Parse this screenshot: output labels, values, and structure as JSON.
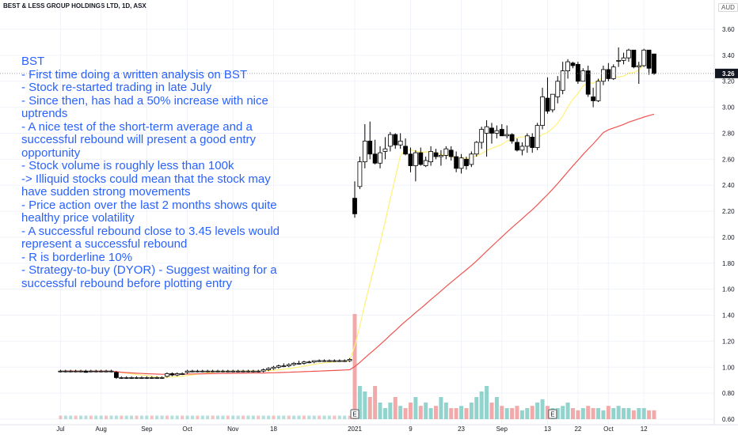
{
  "header": {
    "title": "BEST & LESS GROUP HOLDINGS LTD, 1D, ASX",
    "currency": "AUD"
  },
  "last_price": "3.26",
  "annotation": {
    "lines": [
      "BST",
      "- First time doing a written analysis on BST",
      "- Stock re-started trading in late July",
      "- Since then, has had a 50% increase with nice",
      "uptrends",
      "- A nice test of the short-term average and a",
      "successful rebound will present a good entry",
      "opportunity",
      "- Stock volume is roughly less than 100k",
      "-> Illiquid stocks could mean that the stock may",
      "have sudden strong movements",
      "- Price action over the last 2 months shows quite",
      "healthy price volatility",
      "- A successful rebound close to 3.45 levels would",
      "represent a successful rebound",
      "- R is borderline 10%",
      "- Strategy-to-buy (DYOR) - Suggest waiting for a",
      "successful rebound before plotting entry"
    ]
  },
  "events": [
    {
      "label": "E",
      "x": 0.0
    },
    {
      "label": "E",
      "x": 39.0
    }
  ],
  "colors": {
    "up_candle": "#ffffff",
    "down_candle": "#000000",
    "candle_border": "#000000",
    "short_ma": "#fff176",
    "long_ma": "#ef5350",
    "volume_up": "#80cbc4",
    "volume_down": "#ef9a9a",
    "grid": "#f0f3fa",
    "axis_text": "#131722",
    "price_line": "#888888"
  },
  "chart_data": {
    "type": "candlestick",
    "title": "BEST & LESS GROUP HOLDINGS LTD, 1D, ASX",
    "y_axis": {
      "ticks": [
        "3.60",
        "3.40",
        "3.20",
        "3.00",
        "2.80",
        "2.60",
        "2.40",
        "2.20",
        "2.00",
        "1.80",
        "1.60",
        "1.40",
        "1.20",
        "1.00",
        "0.80",
        "0.60"
      ],
      "range": [
        0.58,
        3.7
      ]
    },
    "x_axis": {
      "range": [
        -58,
        61
      ],
      "ticks": [
        {
          "label": "Jul",
          "x": -58
        },
        {
          "label": "Aug",
          "x": -50
        },
        {
          "label": "Sep",
          "x": -41
        },
        {
          "label": "Oct",
          "x": -33
        },
        {
          "label": "Nov",
          "x": -24
        },
        {
          "label": "18",
          "x": -16
        },
        {
          "label": "2021",
          "x": 0
        },
        {
          "label": "9",
          "x": 11
        },
        {
          "label": "23",
          "x": 21
        },
        {
          "label": "Sep",
          "x": 29
        },
        {
          "label": "13",
          "x": 38
        },
        {
          "label": "22",
          "x": 44
        },
        {
          "label": "Oct",
          "x": 50
        },
        {
          "label": "12",
          "x": 57
        }
      ]
    },
    "pre_bars": [
      {
        "o": 0.97,
        "h": 0.98,
        "l": 0.96,
        "c": 0.97
      },
      {
        "o": 0.97,
        "h": 0.98,
        "l": 0.96,
        "c": 0.97
      },
      {
        "o": 0.97,
        "h": 0.98,
        "l": 0.96,
        "c": 0.97
      },
      {
        "o": 0.97,
        "h": 0.98,
        "l": 0.96,
        "c": 0.97
      },
      {
        "o": 0.97,
        "h": 0.98,
        "l": 0.96,
        "c": 0.97
      },
      {
        "o": 0.97,
        "h": 0.98,
        "l": 0.96,
        "c": 0.96
      },
      {
        "o": 0.97,
        "h": 0.98,
        "l": 0.96,
        "c": 0.97
      },
      {
        "o": 0.97,
        "h": 0.98,
        "l": 0.96,
        "c": 0.97
      },
      {
        "o": 0.97,
        "h": 0.98,
        "l": 0.96,
        "c": 0.97
      },
      {
        "o": 0.97,
        "h": 0.98,
        "l": 0.96,
        "c": 0.97
      },
      {
        "o": 0.97,
        "h": 0.98,
        "l": 0.96,
        "c": 0.97
      },
      {
        "o": 0.96,
        "h": 0.97,
        "l": 0.91,
        "c": 0.92
      },
      {
        "o": 0.92,
        "h": 0.93,
        "l": 0.91,
        "c": 0.92
      },
      {
        "o": 0.92,
        "h": 0.93,
        "l": 0.91,
        "c": 0.92
      },
      {
        "o": 0.92,
        "h": 0.93,
        "l": 0.91,
        "c": 0.92
      },
      {
        "o": 0.92,
        "h": 0.93,
        "l": 0.91,
        "c": 0.92
      },
      {
        "o": 0.92,
        "h": 0.93,
        "l": 0.91,
        "c": 0.92
      },
      {
        "o": 0.92,
        "h": 0.93,
        "l": 0.91,
        "c": 0.92
      },
      {
        "o": 0.92,
        "h": 0.93,
        "l": 0.91,
        "c": 0.92
      },
      {
        "o": 0.92,
        "h": 0.93,
        "l": 0.91,
        "c": 0.92
      },
      {
        "o": 0.92,
        "h": 0.93,
        "l": 0.91,
        "c": 0.92
      },
      {
        "o": 0.93,
        "h": 0.96,
        "l": 0.92,
        "c": 0.95
      },
      {
        "o": 0.95,
        "h": 0.96,
        "l": 0.93,
        "c": 0.94
      },
      {
        "o": 0.94,
        "h": 0.96,
        "l": 0.93,
        "c": 0.95
      },
      {
        "o": 0.95,
        "h": 0.96,
        "l": 0.94,
        "c": 0.95
      },
      {
        "o": 0.96,
        "h": 0.98,
        "l": 0.95,
        "c": 0.97
      },
      {
        "o": 0.97,
        "h": 0.98,
        "l": 0.96,
        "c": 0.97
      },
      {
        "o": 0.97,
        "h": 0.98,
        "l": 0.96,
        "c": 0.97
      },
      {
        "o": 0.97,
        "h": 0.98,
        "l": 0.96,
        "c": 0.97
      },
      {
        "o": 0.97,
        "h": 0.98,
        "l": 0.96,
        "c": 0.97
      },
      {
        "o": 0.97,
        "h": 0.98,
        "l": 0.96,
        "c": 0.97
      },
      {
        "o": 0.97,
        "h": 0.98,
        "l": 0.96,
        "c": 0.97
      },
      {
        "o": 0.97,
        "h": 0.98,
        "l": 0.96,
        "c": 0.97
      },
      {
        "o": 0.97,
        "h": 0.98,
        "l": 0.96,
        "c": 0.97
      },
      {
        "o": 0.97,
        "h": 0.98,
        "l": 0.96,
        "c": 0.97
      },
      {
        "o": 0.97,
        "h": 0.98,
        "l": 0.96,
        "c": 0.97
      },
      {
        "o": 0.97,
        "h": 0.98,
        "l": 0.96,
        "c": 0.97
      },
      {
        "o": 0.97,
        "h": 0.98,
        "l": 0.96,
        "c": 0.97
      },
      {
        "o": 0.97,
        "h": 0.98,
        "l": 0.96,
        "c": 0.97
      },
      {
        "o": 0.97,
        "h": 0.98,
        "l": 0.96,
        "c": 0.97
      },
      {
        "o": 0.97,
        "h": 0.99,
        "l": 0.96,
        "c": 0.98
      },
      {
        "o": 0.98,
        "h": 1.0,
        "l": 0.97,
        "c": 0.99
      },
      {
        "o": 0.99,
        "h": 1.01,
        "l": 0.98,
        "c": 1.0
      },
      {
        "o": 1.0,
        "h": 1.02,
        "l": 0.99,
        "c": 1.01
      },
      {
        "o": 1.01,
        "h": 1.03,
        "l": 1.0,
        "c": 1.01
      },
      {
        "o": 1.01,
        "h": 1.03,
        "l": 1.0,
        "c": 1.02
      },
      {
        "o": 1.02,
        "h": 1.04,
        "l": 1.01,
        "c": 1.03
      },
      {
        "o": 1.03,
        "h": 1.05,
        "l": 1.02,
        "c": 1.03
      },
      {
        "o": 1.03,
        "h": 1.05,
        "l": 1.02,
        "c": 1.04
      },
      {
        "o": 1.04,
        "h": 1.05,
        "l": 1.03,
        "c": 1.04
      },
      {
        "o": 1.04,
        "h": 1.05,
        "l": 1.03,
        "c": 1.05
      },
      {
        "o": 1.05,
        "h": 1.06,
        "l": 1.04,
        "c": 1.05
      },
      {
        "o": 1.05,
        "h": 1.06,
        "l": 1.04,
        "c": 1.05
      },
      {
        "o": 1.05,
        "h": 1.06,
        "l": 1.04,
        "c": 1.05
      },
      {
        "o": 1.05,
        "h": 1.06,
        "l": 1.04,
        "c": 1.05
      },
      {
        "o": 1.05,
        "h": 1.06,
        "l": 1.04,
        "c": 1.05
      },
      {
        "o": 1.05,
        "h": 1.06,
        "l": 1.04,
        "c": 1.05
      },
      {
        "o": 1.05,
        "h": 1.07,
        "l": 1.04,
        "c": 1.06
      }
    ],
    "bars": [
      {
        "o": 2.3,
        "h": 2.43,
        "l": 2.15,
        "c": 2.18
      },
      {
        "o": 2.39,
        "h": 2.62,
        "l": 2.37,
        "c": 2.58
      },
      {
        "o": 2.58,
        "h": 2.87,
        "l": 2.53,
        "c": 2.74
      },
      {
        "o": 2.74,
        "h": 2.89,
        "l": 2.6,
        "c": 2.64
      },
      {
        "o": 2.64,
        "h": 2.75,
        "l": 2.56,
        "c": 2.57
      },
      {
        "o": 2.57,
        "h": 2.7,
        "l": 2.53,
        "c": 2.65
      },
      {
        "o": 2.66,
        "h": 2.77,
        "l": 2.6,
        "c": 2.68
      },
      {
        "o": 2.7,
        "h": 2.81,
        "l": 2.66,
        "c": 2.79
      },
      {
        "o": 2.79,
        "h": 2.8,
        "l": 2.68,
        "c": 2.71
      },
      {
        "o": 2.71,
        "h": 2.8,
        "l": 2.68,
        "c": 2.74
      },
      {
        "o": 2.7,
        "h": 2.76,
        "l": 2.63,
        "c": 2.64
      },
      {
        "o": 2.64,
        "h": 2.69,
        "l": 2.5,
        "c": 2.55
      },
      {
        "o": 2.55,
        "h": 2.67,
        "l": 2.43,
        "c": 2.65
      },
      {
        "o": 2.65,
        "h": 2.69,
        "l": 2.55,
        "c": 2.56
      },
      {
        "o": 2.55,
        "h": 2.62,
        "l": 2.54,
        "c": 2.59
      },
      {
        "o": 2.58,
        "h": 2.7,
        "l": 2.55,
        "c": 2.66
      },
      {
        "o": 2.65,
        "h": 2.68,
        "l": 2.6,
        "c": 2.62
      },
      {
        "o": 2.62,
        "h": 2.67,
        "l": 2.55,
        "c": 2.63
      },
      {
        "o": 2.63,
        "h": 2.7,
        "l": 2.6,
        "c": 2.68
      },
      {
        "o": 2.67,
        "h": 2.7,
        "l": 2.59,
        "c": 2.62
      },
      {
        "o": 2.62,
        "h": 2.66,
        "l": 2.5,
        "c": 2.53
      },
      {
        "o": 2.53,
        "h": 2.64,
        "l": 2.49,
        "c": 2.61
      },
      {
        "o": 2.6,
        "h": 2.62,
        "l": 2.52,
        "c": 2.55
      },
      {
        "o": 2.56,
        "h": 2.66,
        "l": 2.54,
        "c": 2.64
      },
      {
        "o": 2.64,
        "h": 2.74,
        "l": 2.62,
        "c": 2.73
      },
      {
        "o": 2.73,
        "h": 2.85,
        "l": 2.68,
        "c": 2.83
      },
      {
        "o": 2.8,
        "h": 2.9,
        "l": 2.62,
        "c": 2.85
      },
      {
        "o": 2.84,
        "h": 2.88,
        "l": 2.72,
        "c": 2.8
      },
      {
        "o": 2.8,
        "h": 2.86,
        "l": 2.76,
        "c": 2.82
      },
      {
        "o": 2.83,
        "h": 2.87,
        "l": 2.78,
        "c": 2.78
      },
      {
        "o": 2.78,
        "h": 2.86,
        "l": 2.76,
        "c": 2.79
      },
      {
        "o": 2.79,
        "h": 2.8,
        "l": 2.72,
        "c": 2.74
      },
      {
        "o": 2.73,
        "h": 2.76,
        "l": 2.66,
        "c": 2.67
      },
      {
        "o": 2.67,
        "h": 2.73,
        "l": 2.63,
        "c": 2.7
      },
      {
        "o": 2.7,
        "h": 2.8,
        "l": 2.65,
        "c": 2.78
      },
      {
        "o": 2.77,
        "h": 2.8,
        "l": 2.65,
        "c": 2.69
      },
      {
        "o": 2.69,
        "h": 2.88,
        "l": 2.67,
        "c": 2.86
      },
      {
        "o": 2.86,
        "h": 3.15,
        "l": 2.83,
        "c": 3.08
      },
      {
        "o": 3.07,
        "h": 3.23,
        "l": 2.95,
        "c": 2.97
      },
      {
        "o": 2.98,
        "h": 3.1,
        "l": 2.96,
        "c": 3.1
      },
      {
        "o": 3.08,
        "h": 3.24,
        "l": 3.03,
        "c": 3.2
      },
      {
        "o": 3.13,
        "h": 3.35,
        "l": 3.1,
        "c": 3.28
      },
      {
        "o": 3.28,
        "h": 3.37,
        "l": 3.22,
        "c": 3.35
      },
      {
        "o": 3.34,
        "h": 3.35,
        "l": 3.3,
        "c": 3.32
      },
      {
        "o": 3.33,
        "h": 3.35,
        "l": 3.18,
        "c": 3.2
      },
      {
        "o": 3.2,
        "h": 3.3,
        "l": 3.2,
        "c": 3.28
      },
      {
        "o": 3.28,
        "h": 3.32,
        "l": 3.08,
        "c": 3.1
      },
      {
        "o": 3.08,
        "h": 3.15,
        "l": 3.0,
        "c": 3.05
      },
      {
        "o": 3.05,
        "h": 3.22,
        "l": 3.04,
        "c": 3.2
      },
      {
        "o": 3.2,
        "h": 3.32,
        "l": 3.17,
        "c": 3.29
      },
      {
        "o": 3.29,
        "h": 3.34,
        "l": 3.2,
        "c": 3.22
      },
      {
        "o": 3.22,
        "h": 3.33,
        "l": 3.21,
        "c": 3.31
      },
      {
        "o": 3.36,
        "h": 3.46,
        "l": 3.31,
        "c": 3.36
      },
      {
        "o": 3.36,
        "h": 3.42,
        "l": 3.33,
        "c": 3.38
      },
      {
        "o": 3.38,
        "h": 3.45,
        "l": 3.35,
        "c": 3.44
      },
      {
        "o": 3.44,
        "h": 3.44,
        "l": 3.3,
        "c": 3.31
      },
      {
        "o": 3.31,
        "h": 3.35,
        "l": 3.18,
        "c": 3.32
      },
      {
        "o": 3.32,
        "h": 3.45,
        "l": 3.31,
        "c": 3.44
      },
      {
        "o": 3.44,
        "h": 3.44,
        "l": 3.25,
        "c": 3.3
      },
      {
        "o": 3.41,
        "h": 3.41,
        "l": 3.25,
        "c": 3.26
      }
    ],
    "volume": [
      0.95,
      0.3,
      0.25,
      0.2,
      0.3,
      0.15,
      0.1,
      0.15,
      0.2,
      0.12,
      0.1,
      0.15,
      0.2,
      0.12,
      0.15,
      0.1,
      0.12,
      0.2,
      0.15,
      0.1,
      0.1,
      0.12,
      0.1,
      0.15,
      0.2,
      0.25,
      0.3,
      0.15,
      0.2,
      0.12,
      0.1,
      0.1,
      0.12,
      0.08,
      0.1,
      0.12,
      0.15,
      0.18,
      0.12,
      0.1,
      0.1,
      0.12,
      0.15,
      0.1,
      0.08,
      0.1,
      0.12,
      0.1,
      0.1,
      0.08,
      0.12,
      0.1,
      0.12,
      0.1,
      0.1,
      0.08,
      0.1,
      0.1,
      0.08,
      0.08
    ],
    "pre_volume": 0.03
  }
}
